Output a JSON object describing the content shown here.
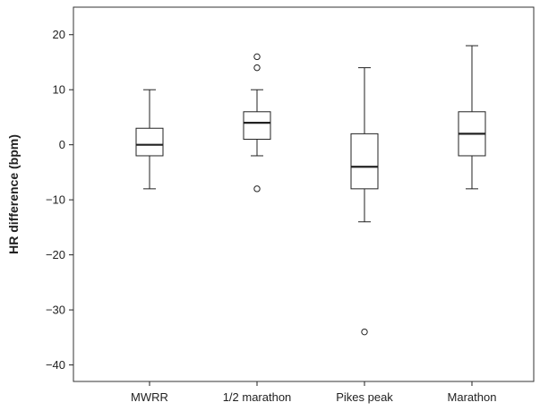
{
  "chart_data": {
    "type": "boxplot",
    "title": "",
    "xlabel": "",
    "ylabel": "HR difference (bpm)",
    "ylim": [
      -43,
      25
    ],
    "yticks": [
      20,
      10,
      0,
      -10,
      -20,
      -30,
      -40
    ],
    "ytick_labels": [
      "20",
      "10",
      "0",
      "−10",
      "−20",
      "−30",
      "−40"
    ],
    "grid": false,
    "legend": "none",
    "categories": [
      "MWRR",
      "1/2 marathon",
      "Pikes peak",
      "Marathon"
    ],
    "boxes": [
      {
        "category": "MWRR",
        "whisker_low": -8,
        "q1": -2,
        "median": 0,
        "q3": 3,
        "whisker_high": 10,
        "outliers": []
      },
      {
        "category": "1/2 marathon",
        "whisker_low": -2,
        "q1": 1,
        "median": 4,
        "q3": 6,
        "whisker_high": 10,
        "outliers": [
          16,
          14,
          -8
        ]
      },
      {
        "category": "Pikes peak",
        "whisker_low": -14,
        "q1": -8,
        "median": -4,
        "q3": 2,
        "whisker_high": 14,
        "outliers": [
          -34
        ]
      },
      {
        "category": "Marathon",
        "whisker_low": -8,
        "q1": -2,
        "median": 2,
        "q3": 6,
        "whisker_high": 18,
        "outliers": []
      }
    ],
    "colors": {
      "box_fill": "#ffffff",
      "stroke": "#222222"
    }
  }
}
